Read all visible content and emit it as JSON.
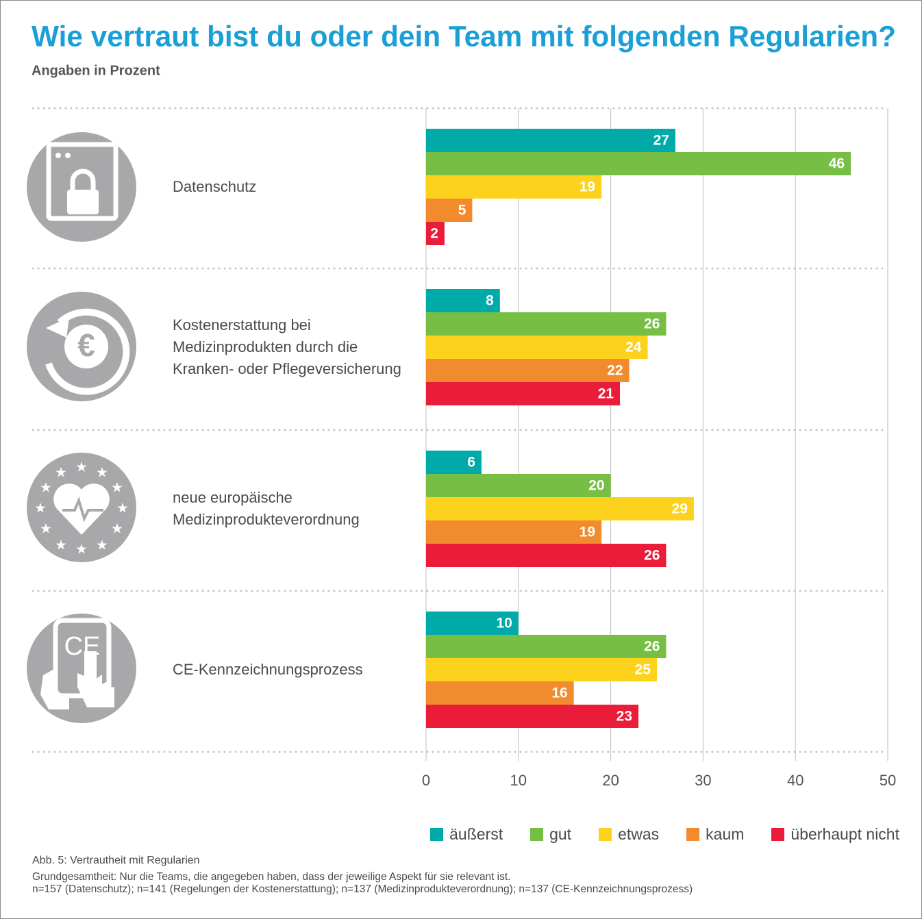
{
  "chart_data": {
    "type": "bar",
    "orientation": "horizontal",
    "title": "Wie vertraut bist du oder dein Team mit folgenden Regularien?",
    "subtitle": "Angaben in Prozent",
    "categories": [
      "Datenschutz",
      "Kostenerstattung bei Medizinprodukten durch die Kranken- oder Pflegeversicherung",
      "neue europäische Medizinprodukteverordnung",
      "CE-Kennzeichnungsprozess"
    ],
    "series": [
      {
        "name": "äußerst",
        "color": "#00aaa8",
        "values": [
          27,
          8,
          6,
          10
        ]
      },
      {
        "name": "gut",
        "color": "#76bf44",
        "values": [
          46,
          26,
          20,
          26
        ]
      },
      {
        "name": "etwas",
        "color": "#fdd21c",
        "values": [
          19,
          24,
          29,
          25
        ]
      },
      {
        "name": "kaum",
        "color": "#f28a2e",
        "values": [
          5,
          22,
          19,
          16
        ]
      },
      {
        "name": "überhaupt nicht",
        "color": "#ea1c3a",
        "values": [
          2,
          21,
          26,
          23
        ]
      }
    ],
    "xlim": [
      0,
      50
    ],
    "xticks": [
      0,
      10,
      20,
      30,
      40,
      50
    ],
    "grid": true,
    "legend": "bottom-right",
    "notes": [
      "Abb. 5: Vertrautheit mit Regularien",
      "Grundgesamtheit: Nur die Teams, die angegeben haben, dass der jeweilige Aspekt für sie relevant ist.",
      "n=157 (Datenschutz); n=141 (Regelungen der Kostenerstattung); n=137 (Medizinprodukteverordnung); n=137 (CE-Kennzeichnungsprozess)"
    ]
  }
}
